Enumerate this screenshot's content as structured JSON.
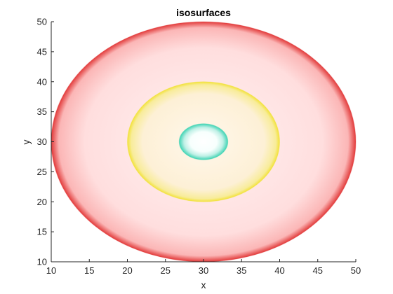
{
  "chart_data": {
    "type": "isosurface",
    "title": "isosurfaces",
    "xlabel": "x",
    "ylabel": "y",
    "xlim": [
      10,
      50
    ],
    "ylim": [
      10,
      50
    ],
    "xticks": [
      10,
      15,
      20,
      25,
      30,
      35,
      40,
      45,
      50
    ],
    "yticks": [
      10,
      15,
      20,
      25,
      30,
      35,
      40,
      45,
      50
    ],
    "grid": false,
    "center": [
      30,
      30
    ],
    "surfaces": [
      {
        "level": "outer",
        "radius_x": 20,
        "radius_y": 20,
        "color": "#e23b3b",
        "fill": "#ffdede"
      },
      {
        "level": "middle",
        "radius_x": 10,
        "radius_y": 10,
        "color": "#f2e23a",
        "fill": "#fdf2d8"
      },
      {
        "level": "inner",
        "radius_x": 3.2,
        "radius_y": 3.0,
        "color": "#36d1b0",
        "fill": "#c2f0e8"
      }
    ]
  }
}
